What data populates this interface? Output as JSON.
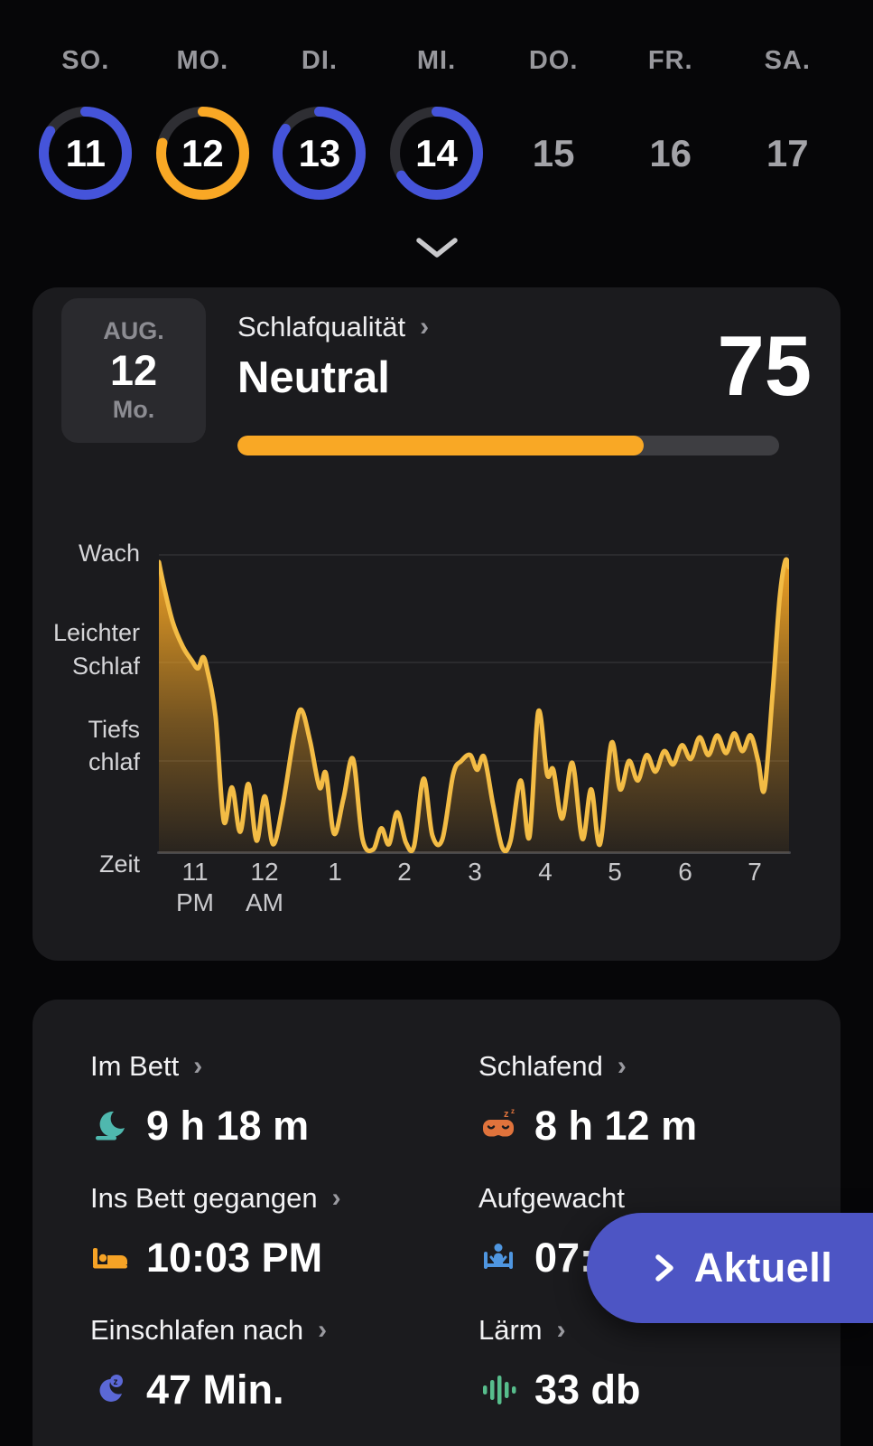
{
  "ui": {
    "chevron": "›",
    "ring_track": "#2e2e33",
    "accent_blue": "#4554da",
    "accent_yellow": "#f9a825"
  },
  "week": {
    "day_headers": [
      "SO.",
      "MO.",
      "DI.",
      "MI.",
      "DO.",
      "FR.",
      "SA."
    ],
    "days": [
      {
        "num": "11",
        "ring": true,
        "color": "#4554da",
        "progress": 84
      },
      {
        "num": "12",
        "ring": true,
        "color": "#f9a825",
        "progress": 79
      },
      {
        "num": "13",
        "ring": true,
        "color": "#4554da",
        "progress": 85
      },
      {
        "num": "14",
        "ring": true,
        "color": "#4554da",
        "progress": 66
      },
      {
        "num": "15",
        "ring": false
      },
      {
        "num": "16",
        "ring": false
      },
      {
        "num": "17",
        "ring": false
      }
    ]
  },
  "quality_card": {
    "date": {
      "month": "AUG.",
      "day": "12",
      "weekday": "Mo."
    },
    "title": "Schlafqualität",
    "rating": "Neutral",
    "score": "75",
    "score_max": 100,
    "bar_color": "#f9a825"
  },
  "chart_data": {
    "type": "area",
    "x_axis_label": "Zeit",
    "y_labels": {
      "wach": "Wach",
      "leichter_1": "Leichter",
      "leichter_2": "Schlaf",
      "tief_1": "Tiefs",
      "tief_2": "chlaf"
    },
    "y_levels": [
      "Wach",
      "Leichter Schlaf",
      "Tiefschlaf"
    ],
    "x_ticks": [
      [
        "11",
        "PM"
      ],
      [
        "12",
        "AM"
      ],
      [
        "1",
        ""
      ],
      [
        "2",
        ""
      ],
      [
        "3",
        ""
      ],
      [
        "4",
        ""
      ],
      [
        "5",
        ""
      ],
      [
        "6",
        ""
      ],
      [
        "7",
        ""
      ]
    ],
    "x_range": [
      "10:30 PM",
      "7:30 AM"
    ],
    "line_color": "#f3bc45",
    "fill_color": "#f9a825",
    "points_format": "[fraction_of_night 0..1, sleep_depth_level: 0=Wach, 1=Leichter Schlaf, 2=Tiefschlaf, 3=deepest]",
    "points": [
      [
        0.0,
        0.05
      ],
      [
        0.008,
        0.28
      ],
      [
        0.022,
        0.62
      ],
      [
        0.038,
        0.85
      ],
      [
        0.052,
        0.98
      ],
      [
        0.062,
        1.06
      ],
      [
        0.07,
        0.95
      ],
      [
        0.077,
        1.08
      ],
      [
        0.09,
        1.55
      ],
      [
        0.103,
        2.68
      ],
      [
        0.116,
        2.3
      ],
      [
        0.129,
        2.8
      ],
      [
        0.142,
        2.26
      ],
      [
        0.155,
        2.9
      ],
      [
        0.168,
        2.4
      ],
      [
        0.181,
        2.94
      ],
      [
        0.196,
        2.52
      ],
      [
        0.215,
        1.72
      ],
      [
        0.226,
        1.48
      ],
      [
        0.24,
        1.8
      ],
      [
        0.255,
        2.3
      ],
      [
        0.265,
        2.14
      ],
      [
        0.278,
        2.82
      ],
      [
        0.293,
        2.42
      ],
      [
        0.308,
        1.98
      ],
      [
        0.323,
        2.88
      ],
      [
        0.34,
        3.0
      ],
      [
        0.353,
        2.76
      ],
      [
        0.365,
        2.94
      ],
      [
        0.378,
        2.58
      ],
      [
        0.392,
        2.92
      ],
      [
        0.405,
        2.96
      ],
      [
        0.42,
        2.2
      ],
      [
        0.434,
        2.84
      ],
      [
        0.45,
        2.88
      ],
      [
        0.467,
        2.15
      ],
      [
        0.48,
        2.0
      ],
      [
        0.494,
        1.94
      ],
      [
        0.505,
        2.1
      ],
      [
        0.516,
        1.96
      ],
      [
        0.53,
        2.48
      ],
      [
        0.545,
        2.98
      ],
      [
        0.558,
        2.9
      ],
      [
        0.574,
        2.22
      ],
      [
        0.588,
        2.86
      ],
      [
        0.602,
        1.5
      ],
      [
        0.616,
        2.15
      ],
      [
        0.626,
        2.1
      ],
      [
        0.64,
        2.65
      ],
      [
        0.656,
        2.02
      ],
      [
        0.672,
        2.88
      ],
      [
        0.686,
        2.32
      ],
      [
        0.7,
        2.94
      ],
      [
        0.718,
        1.82
      ],
      [
        0.732,
        2.32
      ],
      [
        0.746,
        2.0
      ],
      [
        0.76,
        2.22
      ],
      [
        0.774,
        1.94
      ],
      [
        0.788,
        2.12
      ],
      [
        0.802,
        1.9
      ],
      [
        0.816,
        2.04
      ],
      [
        0.83,
        1.84
      ],
      [
        0.844,
        1.98
      ],
      [
        0.858,
        1.76
      ],
      [
        0.872,
        1.94
      ],
      [
        0.886,
        1.74
      ],
      [
        0.9,
        1.92
      ],
      [
        0.913,
        1.72
      ],
      [
        0.926,
        1.9
      ],
      [
        0.939,
        1.74
      ],
      [
        0.951,
        2.0
      ],
      [
        0.961,
        2.32
      ],
      [
        0.974,
        1.3
      ],
      [
        0.985,
        0.4
      ],
      [
        0.994,
        0.04
      ],
      [
        1.0,
        0.1
      ]
    ]
  },
  "stats": {
    "items": [
      {
        "label": "Im Bett",
        "value": "9 h 18 m",
        "icon": "moon-bed",
        "icon_color": "#4fb8ae"
      },
      {
        "label": "Schlafend",
        "value": "8 h 12 m",
        "icon": "sleep-mask",
        "icon_color": "#e0733c"
      },
      {
        "label": "Ins Bett gegangen",
        "value": "10:03 PM",
        "icon": "bed",
        "icon_color": "#f6a326"
      },
      {
        "label": "Aufgewacht",
        "value": "07:",
        "icon": "wake-person",
        "icon_color": "#4f96e0"
      },
      {
        "label": "Einschlafen nach",
        "value": "47 Min.",
        "icon": "moon-z",
        "icon_color": "#5b68d6"
      },
      {
        "label": "Lärm",
        "value": "33 db",
        "icon": "sound-bars",
        "icon_color": "#57bd8c"
      }
    ]
  },
  "aktuell_button": {
    "label": "Aktuell",
    "color": "#4d55c4"
  }
}
